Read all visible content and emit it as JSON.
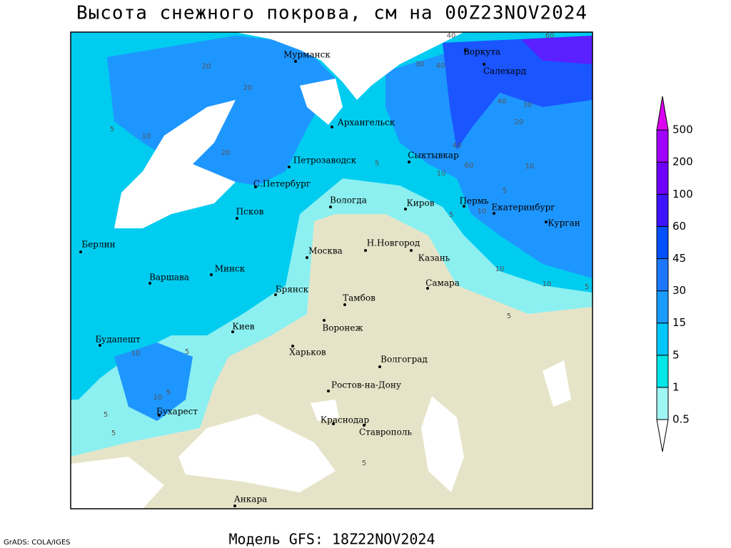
{
  "header": {
    "title": "Высота снежного покрова, см на 00Z23NOV2024"
  },
  "footer": {
    "model": "Модель GFS: 18Z22NOV2024",
    "credit": "GrADS: COLA/IGES"
  },
  "map": {
    "cities": [
      "Мурманск",
      "Воркута",
      "Салехард",
      "Архангельск",
      "Петрозаводск",
      "Сыктывкар",
      "С.Петербург",
      "Вологда",
      "Киров",
      "Пермь",
      "Екатеринбург",
      "Курган",
      "Псков",
      "Берлин",
      "Н.Новгород",
      "Москва",
      "Казань",
      "Минск",
      "Варшава",
      "Самара",
      "Брянск",
      "Тамбов",
      "Воронеж",
      "Киев",
      "Будапешт",
      "Харьков",
      "Волгоград",
      "Ростов-на-Дону",
      "Бухарест",
      "Краснодар",
      "Ставрополь",
      "Анкара"
    ],
    "contour_labels": [
      "20",
      "20",
      "20",
      "10",
      "5",
      "40",
      "60",
      "30",
      "40",
      "40",
      "30",
      "20",
      "40",
      "60",
      "10",
      "5",
      "10",
      "5",
      "10",
      "10",
      "5",
      "5",
      "5",
      "10",
      "5",
      "10",
      "5",
      "5",
      "5",
      "5",
      "10"
    ]
  },
  "legend": {
    "levels": [
      0.5,
      1,
      5,
      15,
      30,
      45,
      60,
      100,
      200,
      500
    ],
    "colors": [
      "#ffffff",
      "#a0f5f5",
      "#00e6e6",
      "#00c8ff",
      "#1a9bff",
      "#1e78ff",
      "#0050ff",
      "#3c14ff",
      "#6e00ff",
      "#a000ff",
      "#dc00f0"
    ]
  }
}
